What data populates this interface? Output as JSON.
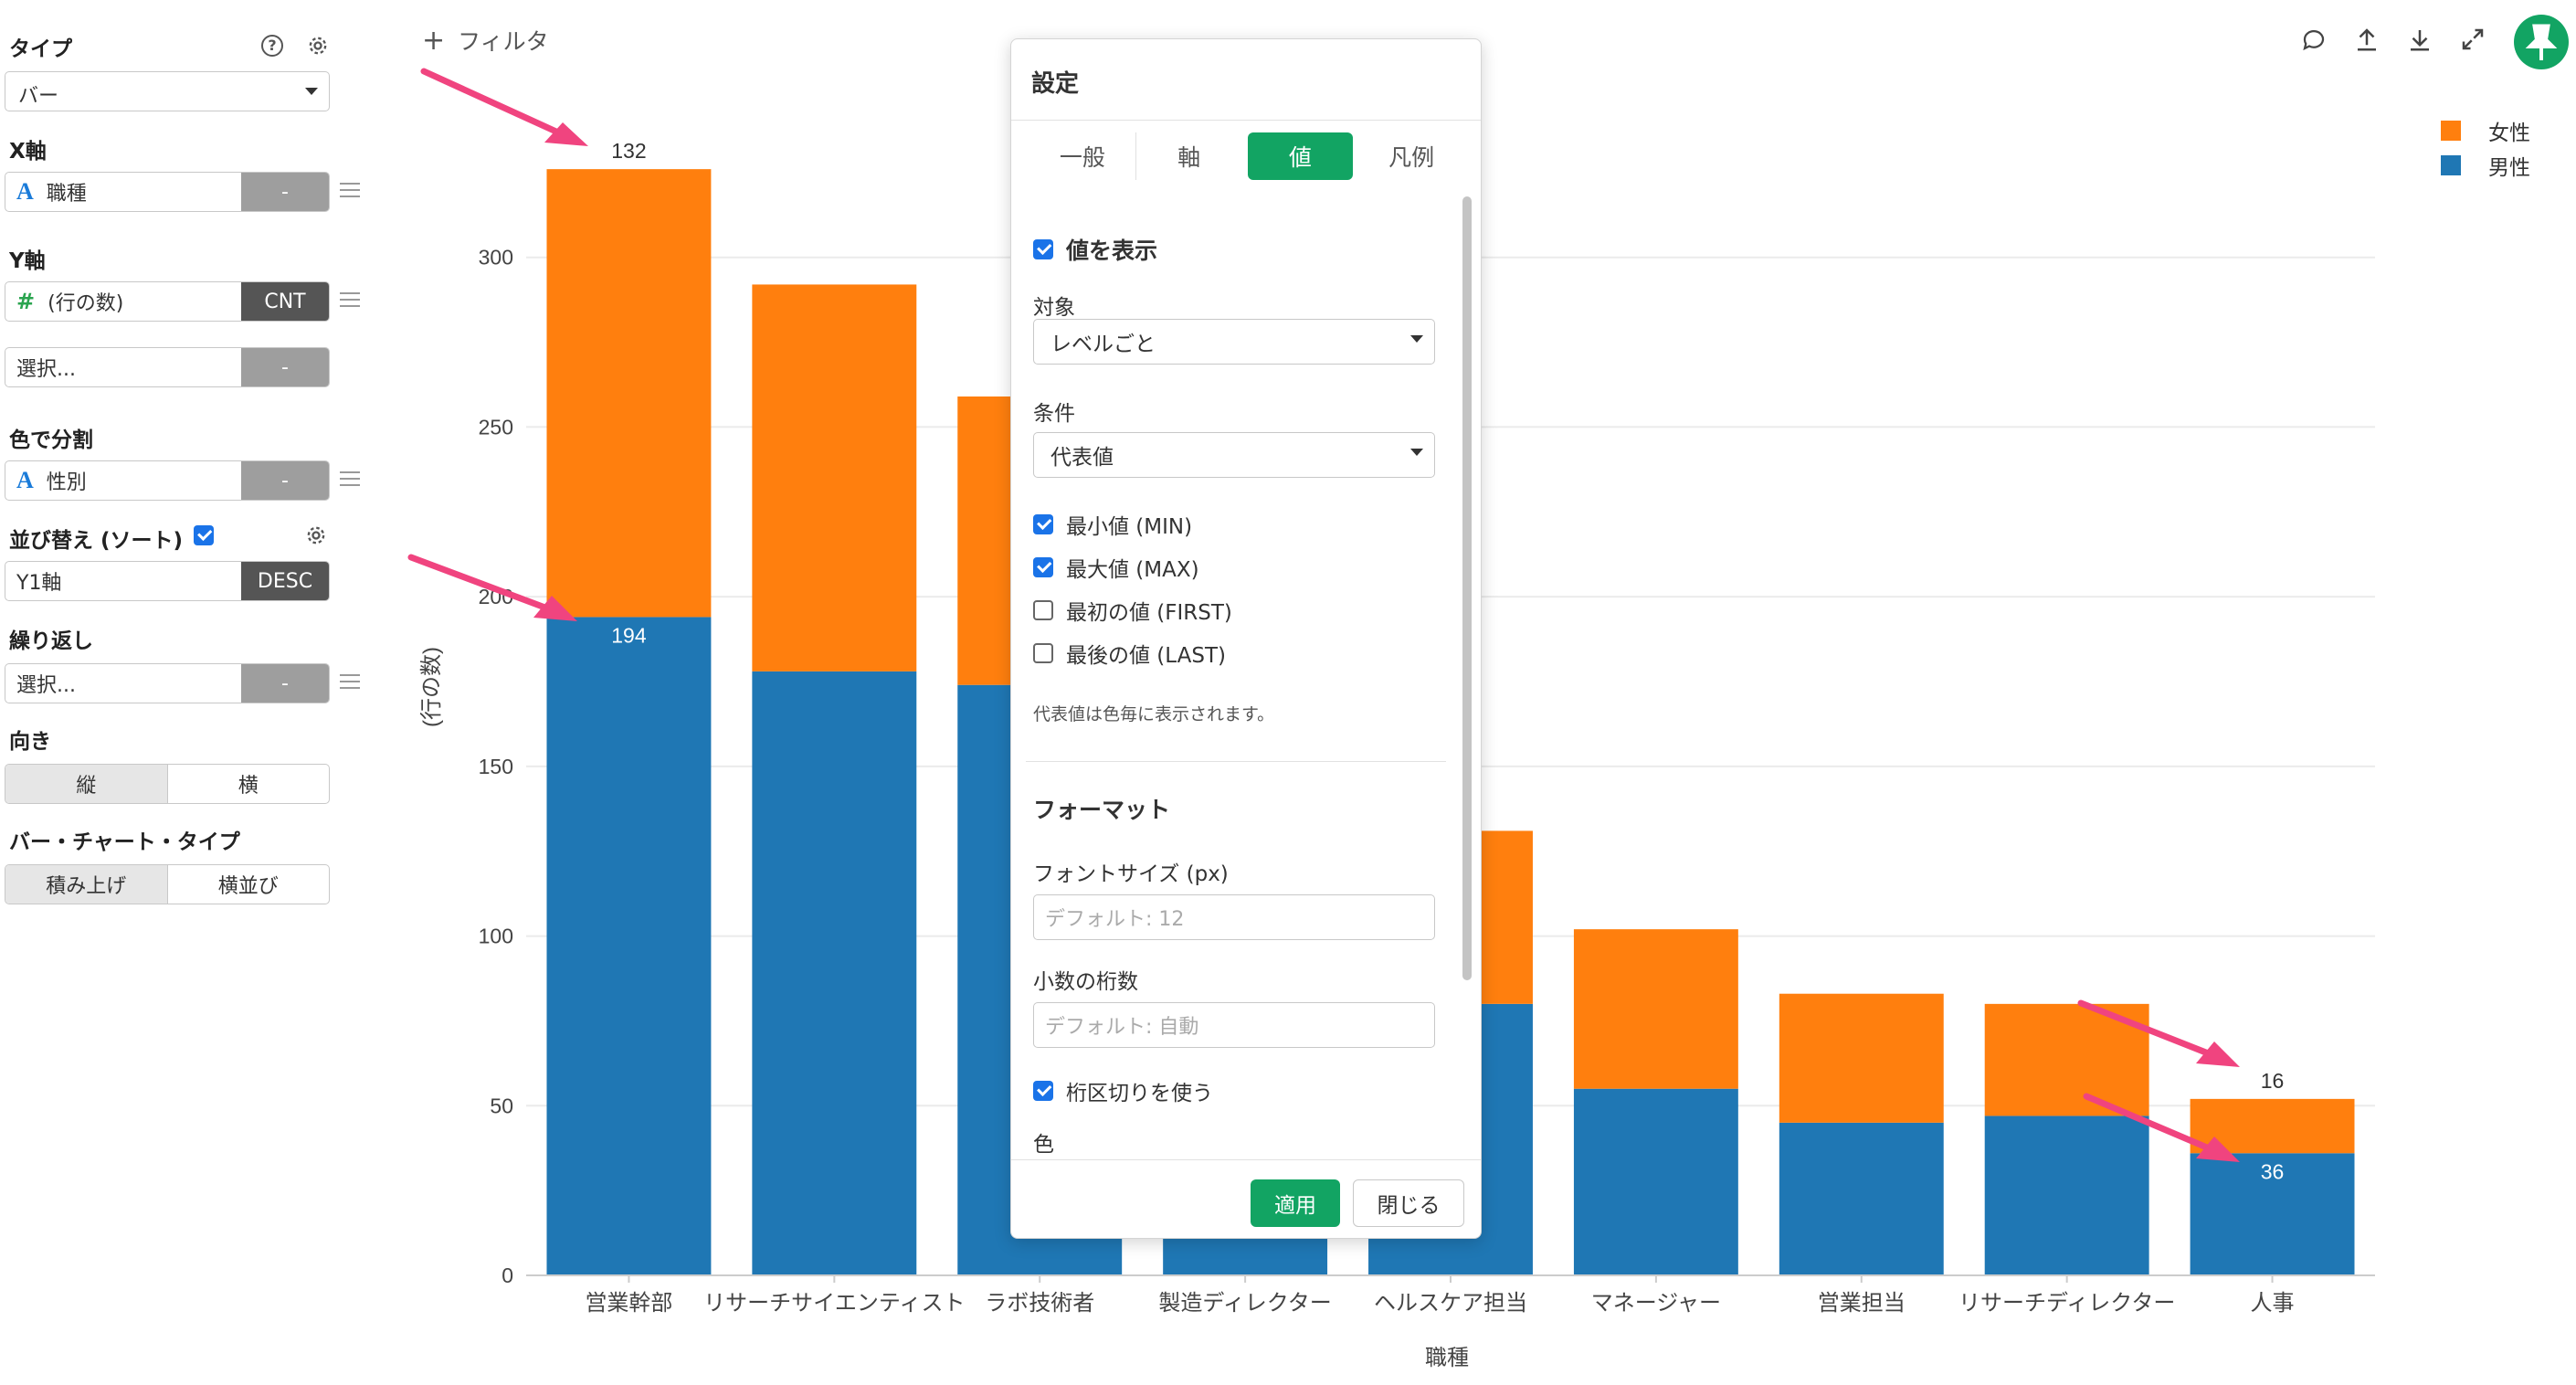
{
  "left_panel": {
    "type": {
      "label": "タイプ",
      "value": "バー"
    },
    "x_axis": {
      "label": "X軸",
      "field": "職種",
      "agg": "-"
    },
    "y_axis": {
      "label": "Y軸",
      "field": "(行の数)",
      "agg": "CNT",
      "extra_placeholder": "選択...",
      "extra_agg": "-"
    },
    "color": {
      "label": "色で分割",
      "field": "性別",
      "agg": "-"
    },
    "sort": {
      "label": "並び替え (ソート)",
      "field": "Y1軸",
      "order": "DESC"
    },
    "repeat": {
      "label": "繰り返し",
      "placeholder": "選択...",
      "agg": "-"
    },
    "orientation": {
      "label": "向き",
      "options": [
        "縦",
        "横"
      ]
    },
    "bar_type": {
      "label": "バー・チャート・タイプ",
      "options": [
        "積み上げ",
        "横並び"
      ]
    }
  },
  "toolbar": {
    "filter_label": "フィルタ"
  },
  "legend": [
    {
      "label": "女性",
      "color": "#ff7f0e"
    },
    {
      "label": "男性",
      "color": "#1f77b4"
    }
  ],
  "dialog": {
    "title": "設定",
    "tabs": [
      "一般",
      "軸",
      "値",
      "凡例"
    ],
    "active_tab": "値",
    "show_values_label": "値を表示",
    "target_label": "対象",
    "target_value": "レベルごと",
    "condition_label": "条件",
    "condition_value": "代表値",
    "options": [
      {
        "label": "最小値 (MIN)",
        "checked": true
      },
      {
        "label": "最大値 (MAX)",
        "checked": true
      },
      {
        "label": "最初の値 (FIRST)",
        "checked": false
      },
      {
        "label": "最後の値 (LAST)",
        "checked": false
      }
    ],
    "note": "代表値は色毎に表示されます。",
    "format_title": "フォーマット",
    "font_size_label": "フォントサイズ (px)",
    "font_size_placeholder": "デフォルト: 12",
    "decimals_label": "小数の桁数",
    "decimals_placeholder": "デフォルト: 自動",
    "thousands_label": "桁区切りを使う",
    "color_label": "色",
    "apply_button": "適用",
    "close_button": "閉じる"
  },
  "chart_data": {
    "type": "bar",
    "stacked": true,
    "categories": [
      "営業幹部",
      "リサーチサイエンティスト",
      "ラボ技術者",
      "製造ディレクター",
      "ヘルスケア担当",
      "マネージャー",
      "営業担当",
      "リサーチディレクター",
      "人事"
    ],
    "series": [
      {
        "name": "男性",
        "color": "#1f77b4",
        "values": [
          194,
          178,
          174,
          104,
          80,
          55,
          45,
          47,
          36
        ]
      },
      {
        "name": "女性",
        "color": "#ff7f0e",
        "values": [
          132,
          114,
          85,
          24,
          51,
          47,
          38,
          33,
          16
        ]
      }
    ],
    "labels": [
      {
        "category": "営業幹部",
        "series": "女性",
        "text": "132"
      },
      {
        "category": "営業幹部",
        "series": "男性",
        "text": "194"
      },
      {
        "category": "人事",
        "series": "女性",
        "text": "16"
      },
      {
        "category": "人事",
        "series": "男性",
        "text": "36"
      }
    ],
    "xlabel": "職種",
    "ylabel": "(行の数)",
    "ylim": [
      0,
      350
    ],
    "yticks": [
      0,
      50,
      100,
      150,
      200,
      250,
      300
    ],
    "grid": true,
    "legend_position": "top-right"
  }
}
